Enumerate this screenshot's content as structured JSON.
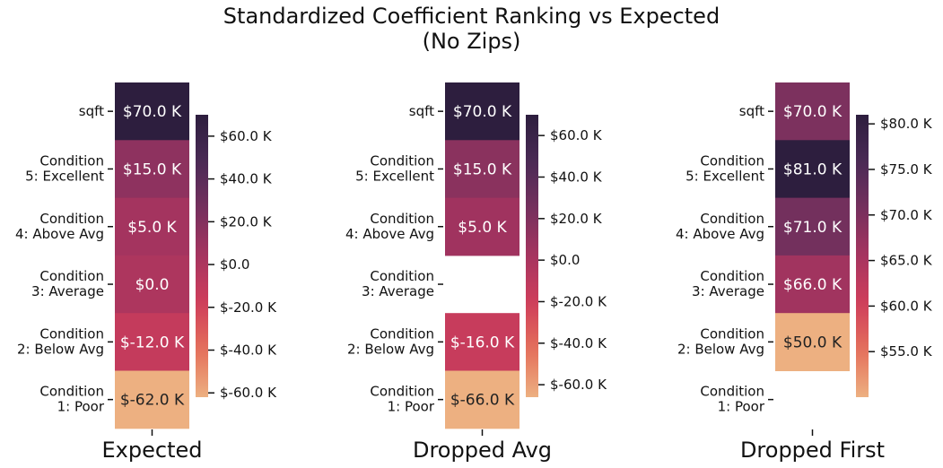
{
  "chart_data": {
    "type": "heatmap",
    "title_lines": [
      "Standardized Coefficient Ranking vs Expected",
      "(No Zips)"
    ],
    "row_labels": [
      [
        "sqft"
      ],
      [
        "Condition",
        "5: Excellent"
      ],
      [
        "Condition",
        "4: Above Avg"
      ],
      [
        "Condition",
        "3: Average"
      ],
      [
        "Condition",
        "2: Below Avg"
      ],
      [
        "Condition",
        "1: Poor"
      ]
    ],
    "panels": [
      {
        "xlabel": "Expected",
        "values": [
          70,
          15,
          5,
          0,
          -12,
          -62
        ],
        "cell_labels": [
          "$70.0 K",
          "$15.0 K",
          "$5.0 K",
          "$0.0",
          "$-12.0 K",
          "$-62.0 K"
        ],
        "vmin": -62,
        "vmax": 70,
        "colorbar_ticks": [
          60,
          40,
          20,
          0,
          -20,
          -40,
          -60
        ],
        "colorbar_tick_labels": [
          "$60.0 K",
          "$40.0 K",
          "$20.0 K",
          "$0.0",
          "$-20.0 K",
          "$-40.0 K",
          "$-60.0 K"
        ]
      },
      {
        "xlabel": "Dropped Avg",
        "values": [
          70,
          15,
          5,
          null,
          -16,
          -66
        ],
        "cell_labels": [
          "$70.0 K",
          "$15.0 K",
          "$5.0 K",
          "",
          "$-16.0 K",
          "$-66.0 K"
        ],
        "vmin": -66,
        "vmax": 70,
        "colorbar_ticks": [
          60,
          40,
          20,
          0,
          -20,
          -40,
          -60
        ],
        "colorbar_tick_labels": [
          "$60.0 K",
          "$40.0 K",
          "$20.0 K",
          "$0.0",
          "$-20.0 K",
          "$-40.0 K",
          "$-60.0 K"
        ]
      },
      {
        "xlabel": "Dropped First",
        "values": [
          70,
          81,
          71,
          66,
          50,
          null
        ],
        "cell_labels": [
          "$70.0 K",
          "$81.0 K",
          "$71.0 K",
          "$66.0 K",
          "$50.0 K",
          ""
        ],
        "vmin": 50,
        "vmax": 81,
        "colorbar_ticks": [
          80,
          75,
          70,
          65,
          60,
          55
        ],
        "colorbar_tick_labels": [
          "$80.0 K",
          "$75.0 K",
          "$70.0 K",
          "$65.0 K",
          "$60.0 K",
          "$55.0 K"
        ]
      }
    ],
    "colormap": [
      "#edb081",
      "#e4705b",
      "#cf3e5b",
      "#a6345f",
      "#76305e",
      "#4a2a55",
      "#2d1e3e"
    ]
  }
}
